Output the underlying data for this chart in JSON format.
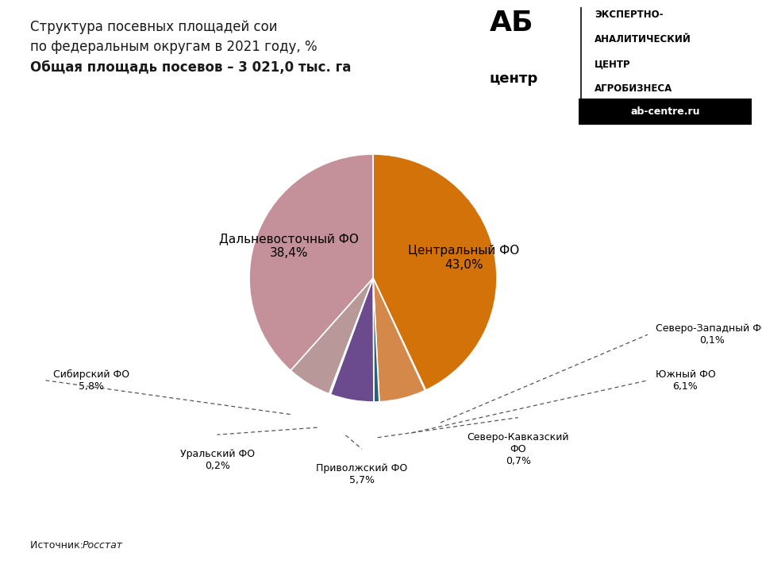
{
  "title_line1": "Структура посевных площадей сои",
  "title_line2": "по федеральным округам в 2021 году, %",
  "title_line3": "Общая площадь посевов – 3 021,0 тыс. га",
  "source_label": "Источник: ",
  "source_italic": "Росстат",
  "labels": [
    "Центральный ФО",
    "Северо-Западный ФО",
    "Южный ФО",
    "Северо-Кавказский\nФО",
    "Приволжский ФО",
    "Уральский ФО",
    "Сибирский ФО",
    "Дальневосточный ФО"
  ],
  "values": [
    43.0,
    0.1,
    6.1,
    0.7,
    5.7,
    0.2,
    5.8,
    38.4
  ],
  "colors": [
    "#D4720A",
    "#4A7A8A",
    "#D4884A",
    "#2E5F7A",
    "#6B4A8E",
    "#E8C8A0",
    "#B89898",
    "#C4909A"
  ],
  "pct_labels": [
    "43,0%",
    "0,1%",
    "6,1%",
    "0,7%",
    "5,7%",
    "0,2%",
    "5,8%",
    "38,4%"
  ],
  "background_color": "#FFFFFF"
}
